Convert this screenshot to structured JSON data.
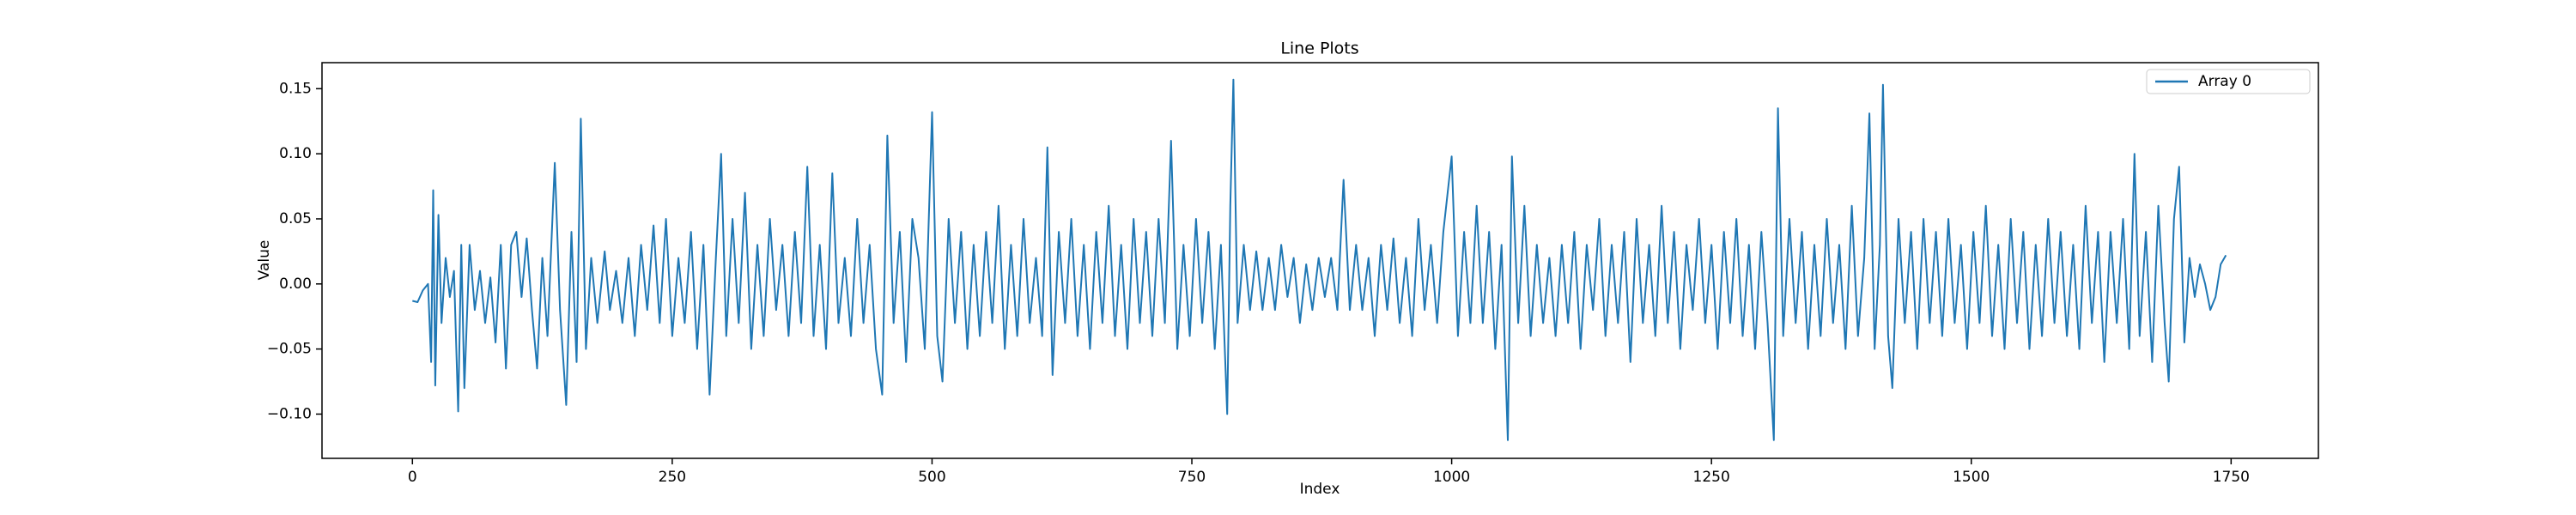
{
  "chart_data": {
    "type": "line",
    "title": "Line Plots",
    "xlabel": "Index",
    "ylabel": "Value",
    "legend": "upper right",
    "grid": false,
    "xlim": [
      -87,
      1834
    ],
    "ylim": [
      -0.134,
      0.17
    ],
    "xticks": [
      0,
      250,
      500,
      750,
      1000,
      1250,
      1500,
      1750
    ],
    "yticks": [
      {
        "value": -0.1,
        "label": "−0.10"
      },
      {
        "value": -0.05,
        "label": "−0.05"
      },
      {
        "value": 0,
        "label": "0.00"
      },
      0.05,
      {
        "value": 0.1,
        "label": "0.10"
      },
      0.15
    ],
    "x": [
      0,
      5,
      10,
      15,
      18,
      20,
      22,
      25,
      28,
      32,
      36,
      40,
      44,
      47,
      50,
      55,
      60,
      65,
      70,
      75,
      80,
      85,
      90,
      95,
      100,
      105,
      110,
      115,
      120,
      125,
      130,
      137,
      142,
      148,
      153,
      158,
      162,
      167,
      172,
      178,
      185,
      190,
      196,
      202,
      208,
      214,
      220,
      226,
      232,
      238,
      244,
      250,
      256,
      262,
      268,
      274,
      280,
      286,
      292,
      297,
      302,
      308,
      314,
      320,
      326,
      332,
      338,
      344,
      350,
      356,
      362,
      368,
      374,
      380,
      386,
      392,
      398,
      404,
      410,
      416,
      422,
      428,
      434,
      440,
      446,
      452,
      457,
      463,
      469,
      475,
      481,
      487,
      493,
      500,
      505,
      510,
      516,
      522,
      528,
      534,
      540,
      546,
      552,
      558,
      564,
      570,
      576,
      582,
      588,
      594,
      600,
      606,
      611,
      616,
      622,
      628,
      634,
      640,
      646,
      652,
      658,
      664,
      670,
      676,
      682,
      688,
      694,
      700,
      706,
      712,
      718,
      724,
      730,
      736,
      742,
      748,
      754,
      760,
      766,
      772,
      778,
      784,
      787,
      790,
      794,
      800,
      806,
      812,
      818,
      824,
      830,
      836,
      842,
      848,
      854,
      860,
      866,
      872,
      878,
      884,
      890,
      896,
      902,
      908,
      914,
      920,
      926,
      932,
      938,
      944,
      950,
      956,
      962,
      968,
      974,
      980,
      986,
      992,
      1000,
      1006,
      1012,
      1018,
      1024,
      1030,
      1036,
      1042,
      1048,
      1054,
      1058,
      1064,
      1070,
      1076,
      1082,
      1088,
      1094,
      1100,
      1106,
      1112,
      1118,
      1124,
      1130,
      1136,
      1142,
      1148,
      1154,
      1160,
      1166,
      1172,
      1178,
      1184,
      1190,
      1196,
      1202,
      1208,
      1214,
      1220,
      1226,
      1232,
      1238,
      1244,
      1250,
      1256,
      1262,
      1268,
      1274,
      1280,
      1286,
      1292,
      1298,
      1304,
      1310,
      1314,
      1319,
      1325,
      1331,
      1337,
      1343,
      1349,
      1355,
      1361,
      1367,
      1373,
      1379,
      1385,
      1391,
      1397,
      1402,
      1407,
      1412,
      1415,
      1420,
      1424,
      1430,
      1436,
      1442,
      1448,
      1454,
      1460,
      1466,
      1472,
      1478,
      1484,
      1490,
      1496,
      1502,
      1508,
      1514,
      1520,
      1526,
      1532,
      1538,
      1544,
      1550,
      1556,
      1562,
      1568,
      1574,
      1580,
      1586,
      1592,
      1598,
      1604,
      1610,
      1616,
      1622,
      1628,
      1634,
      1640,
      1646,
      1652,
      1657,
      1662,
      1668,
      1674,
      1680,
      1686,
      1690,
      1695,
      1700,
      1705,
      1710,
      1715,
      1720,
      1725,
      1730,
      1735,
      1740,
      1745
    ],
    "series": [
      {
        "name": "Array 0",
        "color": "#1f77b4",
        "values": [
          -0.013,
          -0.014,
          -0.005,
          0.0,
          -0.06,
          0.072,
          -0.078,
          0.053,
          -0.03,
          0.02,
          -0.01,
          0.01,
          -0.098,
          0.03,
          -0.08,
          0.03,
          -0.02,
          0.01,
          -0.03,
          0.005,
          -0.045,
          0.03,
          -0.065,
          0.03,
          0.04,
          -0.01,
          0.035,
          -0.02,
          -0.065,
          0.02,
          -0.04,
          0.093,
          -0.02,
          -0.093,
          0.04,
          -0.06,
          0.127,
          -0.05,
          0.02,
          -0.03,
          0.025,
          -0.02,
          0.01,
          -0.03,
          0.02,
          -0.04,
          0.03,
          -0.02,
          0.045,
          -0.03,
          0.05,
          -0.04,
          0.02,
          -0.03,
          0.04,
          -0.05,
          0.03,
          -0.085,
          0.02,
          0.1,
          -0.04,
          0.05,
          -0.03,
          0.07,
          -0.05,
          0.03,
          -0.04,
          0.05,
          -0.02,
          0.03,
          -0.04,
          0.04,
          -0.03,
          0.09,
          -0.04,
          0.03,
          -0.05,
          0.085,
          -0.03,
          0.02,
          -0.04,
          0.05,
          -0.03,
          0.03,
          -0.05,
          -0.085,
          0.114,
          -0.03,
          0.04,
          -0.06,
          0.05,
          0.02,
          -0.05,
          0.132,
          -0.04,
          -0.075,
          0.05,
          -0.03,
          0.04,
          -0.05,
          0.03,
          -0.04,
          0.04,
          -0.03,
          0.06,
          -0.05,
          0.03,
          -0.04,
          0.05,
          -0.03,
          0.02,
          -0.04,
          0.105,
          -0.07,
          0.04,
          -0.03,
          0.05,
          -0.04,
          0.03,
          -0.05,
          0.04,
          -0.03,
          0.06,
          -0.04,
          0.03,
          -0.05,
          0.05,
          -0.03,
          0.04,
          -0.04,
          0.05,
          -0.03,
          0.11,
          -0.05,
          0.03,
          -0.04,
          0.05,
          -0.03,
          0.04,
          -0.05,
          0.03,
          -0.1,
          0.06,
          0.157,
          -0.03,
          0.03,
          -0.02,
          0.025,
          -0.02,
          0.02,
          -0.02,
          0.03,
          -0.01,
          0.02,
          -0.03,
          0.015,
          -0.02,
          0.02,
          -0.01,
          0.02,
          -0.02,
          0.08,
          -0.02,
          0.03,
          -0.02,
          0.02,
          -0.04,
          0.03,
          -0.02,
          0.035,
          -0.03,
          0.02,
          -0.04,
          0.05,
          -0.02,
          0.03,
          -0.03,
          0.04,
          0.098,
          -0.04,
          0.04,
          -0.03,
          0.06,
          -0.03,
          0.04,
          -0.05,
          0.03,
          -0.12,
          0.098,
          -0.03,
          0.06,
          -0.04,
          0.03,
          -0.03,
          0.02,
          -0.04,
          0.03,
          -0.03,
          0.04,
          -0.05,
          0.03,
          -0.02,
          0.05,
          -0.04,
          0.03,
          -0.03,
          0.04,
          -0.06,
          0.05,
          -0.03,
          0.03,
          -0.04,
          0.06,
          -0.03,
          0.04,
          -0.05,
          0.03,
          -0.02,
          0.05,
          -0.03,
          0.03,
          -0.05,
          0.04,
          -0.03,
          0.05,
          -0.04,
          0.03,
          -0.05,
          0.04,
          -0.03,
          -0.12,
          0.135,
          -0.04,
          0.05,
          -0.03,
          0.04,
          -0.05,
          0.03,
          -0.04,
          0.05,
          -0.03,
          0.03,
          -0.05,
          0.06,
          -0.04,
          0.02,
          0.131,
          -0.05,
          0.03,
          0.153,
          -0.04,
          -0.08,
          0.05,
          -0.03,
          0.04,
          -0.05,
          0.05,
          -0.03,
          0.04,
          -0.04,
          0.05,
          -0.03,
          0.03,
          -0.05,
          0.04,
          -0.03,
          0.06,
          -0.04,
          0.03,
          -0.05,
          0.05,
          -0.03,
          0.04,
          -0.05,
          0.03,
          -0.04,
          0.05,
          -0.03,
          0.04,
          -0.04,
          0.03,
          -0.05,
          0.06,
          -0.03,
          0.04,
          -0.06,
          0.04,
          -0.03,
          0.05,
          -0.05,
          0.1,
          -0.04,
          0.04,
          -0.06,
          0.06,
          -0.03,
          -0.075,
          0.05,
          0.09,
          -0.045,
          0.02,
          -0.01,
          0.015,
          0.0,
          -0.02,
          -0.01,
          0.015,
          0.022
        ]
      }
    ]
  }
}
